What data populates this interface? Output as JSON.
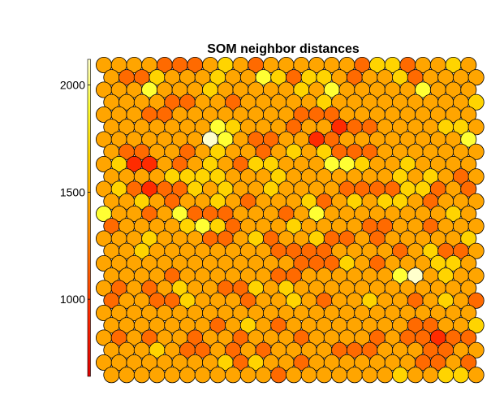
{
  "chart_data": {
    "type": "heatmap",
    "title": "SOM neighbor distances",
    "colorbar": {
      "ticks": [
        1000,
        1500,
        2000
      ],
      "tick_labels": [
        "1000",
        "1500",
        "2000"
      ],
      "range": [
        640,
        2120
      ]
    },
    "grid": {
      "rows": 26,
      "cols": 25,
      "cell_shape": "hexagonal-circle",
      "alternate_row_offset": "half-cell"
    },
    "colormap": [
      "#dd0000",
      "#ff2b00",
      "#ff6a00",
      "#ffa500",
      "#ffd400",
      "#ffff33",
      "#ffffcc"
    ],
    "levels_from_top": [
      "3333222343233333324423343",
      "3224333433542443233423333",
      "3335333433333435333335333",
      "3333223323333343333333334",
      "3332233333333222333333333",
      "3333333543332331223333443",
      "3333333653223312333333335",
      "3223323433234342223333333",
      "3411323432443335543343333",
      "3333444433343333333434323",
      "3421224343343333222244232",
      "3343233432333423434432333",
      "5332352223332353333333343",
      "2333345423334333322332333",
      "3334333223423342232333334",
      "3343333333322223333234223",
      "3333333333333222432333443",
      "3333233333322333333563433",
      "3232343322434333333333333",
      "2332243332334323343323432",
      "3333333333333333333333333",
      "3333333234323333333322334",
      "3232332332333233332322122",
      "3334322323233332223332233",
      "3333333342433233333332232",
      "3333333333323333333433443"
    ]
  }
}
